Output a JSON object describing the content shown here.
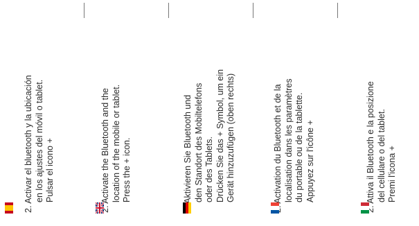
{
  "columns": [
    {
      "lang": "es",
      "lines": [
        "2. Activar el bluetooth y la ubicación",
        "en los ajustes del móvil o tablet.",
        "Pulsar el icono +"
      ],
      "flag_colors": [
        "#c60b1e",
        "#ffc400",
        "#c60b1e"
      ]
    },
    {
      "lang": "en",
      "lines": [
        "2. Activate the Bluetooth and the",
        "location of the mobile or tablet.",
        "Press the + icon."
      ],
      "flag_colors": [
        "#012169",
        "#ffffff",
        "#c8102e"
      ]
    },
    {
      "lang": "de",
      "lines": [
        "2. Aktivieren Sie Bluetooth und",
        "den Standort des Mobiltelefons",
        "oder des Tablets.",
        "Drücken Sie das + Symbol, um ein",
        "Gerät hinzuzufügen (oben rechts)"
      ],
      "flag_colors": [
        "#000000",
        "#dd0000",
        "#ffce00"
      ]
    },
    {
      "lang": "fr",
      "lines": [
        "2. Activation du Bluetooth et de la",
        "localisation dans les paramètres",
        "du portable ou de la tablette.",
        "Appuyez sur l'icône +"
      ],
      "flag_colors": [
        "#ef4135",
        "#ffffff",
        "#0055a4"
      ]
    },
    {
      "lang": "it",
      "lines": [
        "2. Attiva il Bluetooth e la posizione",
        "del cellulare o del tablet.",
        "Premi l'icona +"
      ],
      "flag_colors": [
        "#ce2b37",
        "#ffffff",
        "#009246"
      ]
    }
  ]
}
